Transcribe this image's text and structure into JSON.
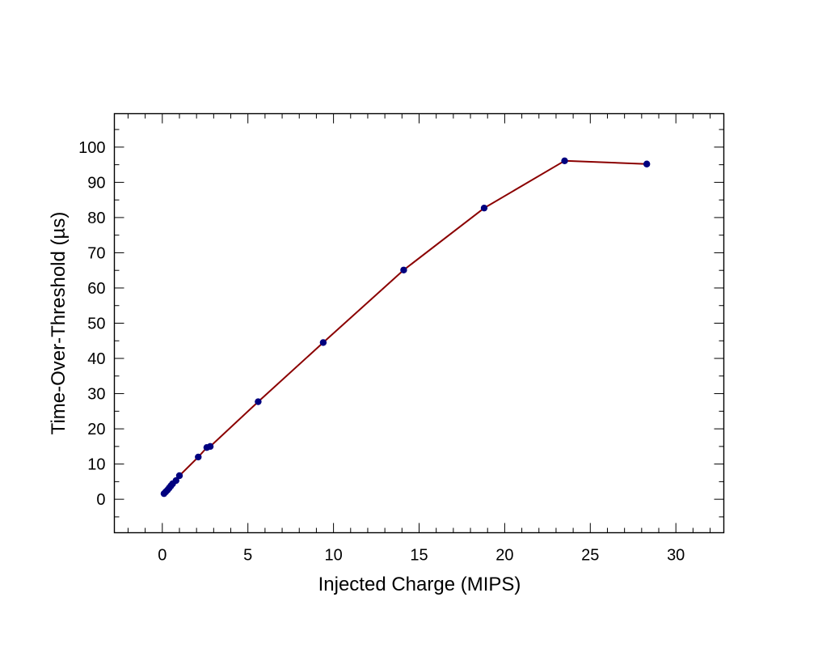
{
  "chart_data": {
    "type": "line",
    "title": "",
    "xlabel": "Injected Charge (MIPS)",
    "ylabel": "Time-Over-Threshold (µs)",
    "xlim": [
      -2.8,
      32.8
    ],
    "ylim": [
      -9.5,
      109.5
    ],
    "x_ticks": [
      0,
      5,
      10,
      15,
      20,
      25,
      30
    ],
    "y_ticks": [
      0,
      10,
      20,
      30,
      40,
      50,
      60,
      70,
      80,
      90,
      100
    ],
    "x_tick_labels": [
      "0",
      "5",
      "10",
      "15",
      "20",
      "25",
      "30"
    ],
    "y_tick_labels": [
      "0",
      "10",
      "20",
      "30",
      "40",
      "50",
      "60",
      "70",
      "80",
      "90",
      "100"
    ],
    "grid": false,
    "legend": "none",
    "series": [
      {
        "line_color": "#8b0000",
        "marker_color": "#00007f",
        "x": [
          0.1,
          0.2,
          0.3,
          0.4,
          0.5,
          0.6,
          0.8,
          1.0,
          2.1,
          2.6,
          2.8,
          5.6,
          9.4,
          14.1,
          18.8,
          23.5,
          28.3
        ],
        "y": [
          1.6,
          2.1,
          2.6,
          3.2,
          3.8,
          4.4,
          5.3,
          6.7,
          12.0,
          14.7,
          15.0,
          27.7,
          44.5,
          65.1,
          82.7,
          96.1,
          95.2
        ]
      }
    ]
  }
}
